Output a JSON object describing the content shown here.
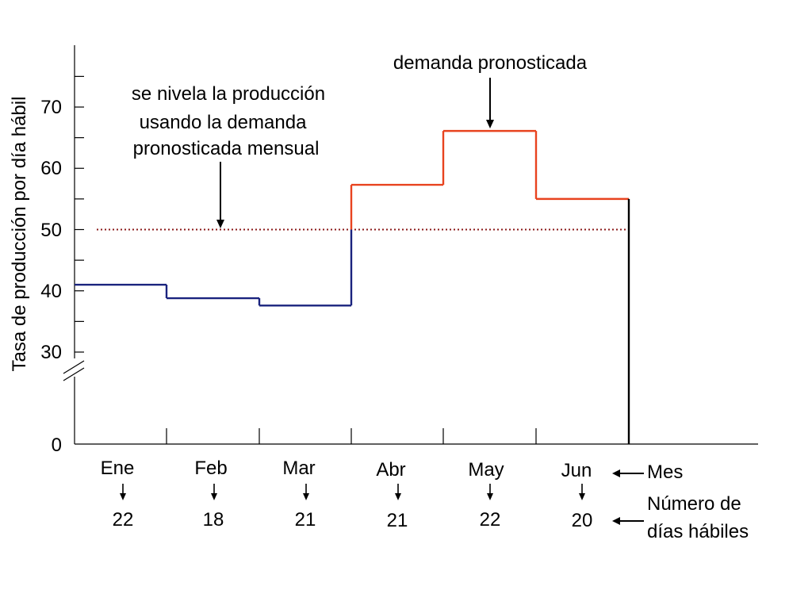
{
  "chart_data": {
    "type": "line",
    "step": true,
    "ylabel": "Tasa de producción por día hábil",
    "y_ticks": [
      "70",
      "60",
      "50",
      "40",
      "30",
      "0"
    ],
    "axis_break": true,
    "months": [
      "Ene",
      "Feb",
      "Mar",
      "Abr",
      "May",
      "Jun"
    ],
    "working_days": [
      "22",
      "18",
      "21",
      "21",
      "22",
      "20"
    ],
    "row_labels": {
      "months": "Mes",
      "working_days_line1": "Número de",
      "working_days_line2": "días hábiles"
    },
    "annotations": {
      "forecast": "demanda pronosticada",
      "level_line1": "se nivela la producción",
      "level_line2": "usando la demanda",
      "level_line3": "pronosticada mensual"
    },
    "series": [
      {
        "values": [
          41,
          38.8,
          37.6,
          57.3,
          66.1,
          55
        ],
        "color_below_level": "#1a237e",
        "color_above_level": "#e8431f"
      }
    ],
    "level_production": {
      "value": 50,
      "color": "#8b1a1a",
      "style": "dotted"
    }
  }
}
